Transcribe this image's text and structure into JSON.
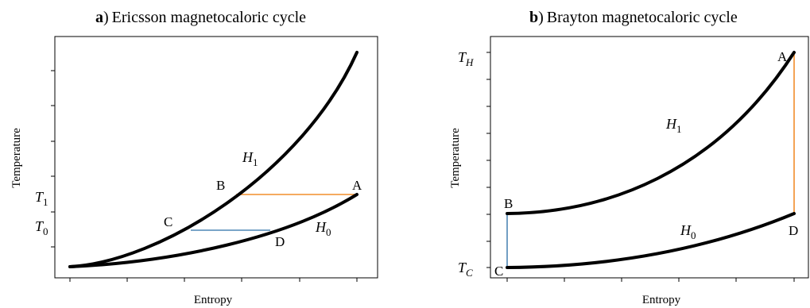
{
  "panels": {
    "a": {
      "title_letter": "a",
      "title_paren": ")",
      "title_text": "Ericsson magnetocaloric cycle",
      "xlabel": "Entropy",
      "ylabel": "Temperature",
      "tick_T1_main": "T",
      "tick_T1_sub": "1",
      "tick_T0_main": "T",
      "tick_T0_sub": "0",
      "curve_H1_main": "H",
      "curve_H1_sub": "1",
      "curve_H0_main": "H",
      "curve_H0_sub": "0",
      "point_A": "A",
      "point_B": "B",
      "point_C": "C",
      "point_D": "D"
    },
    "b": {
      "title_letter": "b",
      "title_paren": ")",
      "title_text": "Brayton magnetocaloric cycle",
      "xlabel": "Entropy",
      "ylabel": "Temperature",
      "tick_TH_main": "T",
      "tick_TH_sub": "H",
      "tick_TC_main": "T",
      "tick_TC_sub": "C",
      "curve_H1_main": "H",
      "curve_H1_sub": "1",
      "curve_H0_main": "H",
      "curve_H0_sub": "0",
      "point_A": "A",
      "point_B": "B",
      "point_C": "C",
      "point_D": "D"
    }
  },
  "colors": {
    "curve": "#000000",
    "isotherm": "#f28e2b",
    "iso_field_warm": "#f28e2b",
    "isotherm_cold": "#4f87b5",
    "frame": "#000000"
  }
}
